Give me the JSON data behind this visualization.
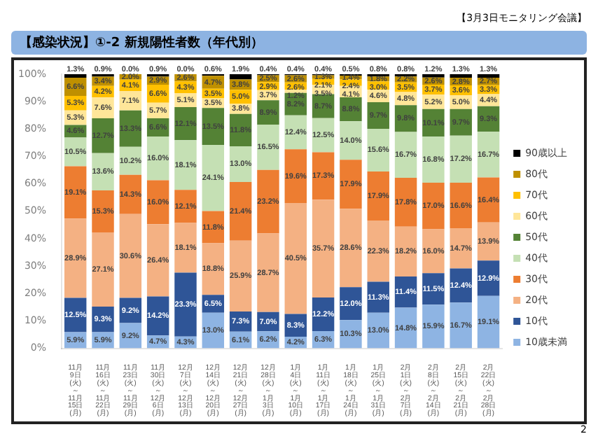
{
  "chart_data": {
    "type": "bar",
    "title": "【感染状況】①-2 新規陽性者数（年代別）",
    "annotations": [
      "【3月3日モニタリング会議】",
      "2"
    ],
    "categories": [
      "11月9日(火)～11月15日(月)",
      "11月16日(火)～11月22日(月)",
      "11月23日(火)～11月29日(月)",
      "11月30日(火)～12月6日(月)",
      "12月7日(火)～12月13日(月)",
      "12月14日(火)～12月20日(月)",
      "12月21日(火)～12月27日(月)",
      "12月28日(火)～1月3日(月)",
      "1月4日(火)～1月10日(月)",
      "1月11日(火)～1月17日(月)",
      "1月18日(火)～1月24日(月)",
      "1月25日(火)～1月31日(月)",
      "2月1日(火)～2月7日(月)",
      "2月8日(火)～2月14日(月)",
      "2月15日(火)～2月21日(月)",
      "2月22日(火)～2月28日(月)"
    ],
    "stacked": true,
    "legend": "right",
    "grid": false,
    "ylim": [
      0,
      100
    ],
    "yticks": [
      {
        "value": 0,
        "label": "0%"
      },
      {
        "value": 10,
        "label": "10%"
      },
      {
        "value": 20,
        "label": "20%"
      },
      {
        "value": 30,
        "label": "30%"
      },
      {
        "value": 40,
        "label": "40%"
      },
      {
        "value": 50,
        "label": "50%"
      },
      {
        "value": 60,
        "label": "60%"
      },
      {
        "value": 70,
        "label": "70%"
      },
      {
        "value": 80,
        "label": "80%"
      },
      {
        "value": 90,
        "label": "90%"
      },
      {
        "value": 100,
        "label": "100%"
      }
    ],
    "series": [
      {
        "name": "10歳未満",
        "color": "#8eb4e3",
        "values": [
          5.9,
          5.9,
          9.2,
          4.7,
          4.3,
          13.0,
          6.1,
          6.2,
          4.2,
          6.3,
          10.3,
          13.0,
          14.8,
          15.9,
          16.7,
          19.1
        ],
        "value_labels": [
          "5.9%",
          "5.9%",
          "9.2%",
          "4.7%",
          "4.3%",
          "13.0%",
          "6.1%",
          "6.2%",
          "4.2%",
          "6.3%",
          "10.3%",
          "13.0%",
          "14.8%",
          "15.9%",
          "16.7%",
          "19.1%"
        ]
      },
      {
        "name": "10代",
        "color": "#2f5597",
        "values": [
          12.5,
          9.3,
          9.2,
          14.2,
          23.3,
          6.5,
          7.3,
          7.0,
          8.3,
          12.2,
          12.0,
          11.3,
          11.4,
          11.5,
          12.4,
          12.9
        ],
        "value_labels": [
          "12.5%",
          "9.3%",
          "9.2%",
          "14.2%",
          "23.3%",
          "6.5%",
          "7.3%",
          "7.0%",
          "8.3%",
          "12.2%",
          "12.0%",
          "11.3%",
          "11.4%",
          "11.5%",
          "12.4%",
          "12.9%"
        ]
      },
      {
        "name": "20代",
        "color": "#f4b183",
        "values": [
          28.9,
          27.1,
          30.6,
          26.4,
          18.1,
          18.8,
          25.9,
          28.7,
          40.5,
          35.7,
          28.6,
          22.3,
          18.2,
          16.0,
          14.7,
          13.9
        ],
        "value_labels": [
          "28.9%",
          "27.1%",
          "30.6%",
          "26.4%",
          "18.1%",
          "18.8%",
          "25.9%",
          "28.7%",
          "40.5%",
          "35.7%",
          "28.6%",
          "22.3%",
          "18.2%",
          "16.0%",
          "14.7%",
          "13.9%"
        ]
      },
      {
        "name": "30代",
        "color": "#ed7d31",
        "values": [
          19.1,
          15.3,
          14.3,
          16.0,
          12.1,
          11.8,
          21.4,
          23.2,
          19.6,
          17.3,
          17.9,
          17.9,
          17.8,
          17.0,
          16.6,
          16.4
        ],
        "value_labels": [
          "19.1%",
          "15.3%",
          "14.3%",
          "16.0%",
          "12.1%",
          "11.8%",
          "21.4%",
          "23.2%",
          "19.6%",
          "17.3%",
          "17.9%",
          "17.9%",
          "17.8%",
          "17.0%",
          "16.6%",
          "16.4%"
        ]
      },
      {
        "name": "40代",
        "color": "#c5e0b4",
        "values": [
          10.5,
          13.6,
          10.2,
          16.0,
          18.1,
          24.1,
          13.0,
          16.5,
          12.4,
          12.5,
          14.0,
          15.6,
          16.7,
          16.8,
          17.2,
          16.7
        ],
        "value_labels": [
          "10.5%",
          "13.6%",
          "10.2%",
          "16.0%",
          "18.1%",
          "24.1%",
          "13.0%",
          "16.5%",
          "12.4%",
          "12.5%",
          "14.0%",
          "15.6%",
          "16.7%",
          "16.8%",
          "17.2%",
          "16.7%"
        ]
      },
      {
        "name": "50代",
        "color": "#548235",
        "values": [
          4.6,
          12.7,
          13.3,
          6.6,
          12.1,
          13.5,
          11.8,
          8.9,
          8.2,
          8.7,
          8.8,
          9.7,
          9.8,
          10.1,
          9.7,
          9.3
        ],
        "value_labels": [
          "4.6%",
          "12.7%",
          "13.3%",
          "6.6%",
          "12.1%",
          "13.5%",
          "11.8%",
          "8.9%",
          "8.2%",
          "8.7%",
          "8.8%",
          "9.7%",
          "9.8%",
          "10.1%",
          "9.7%",
          "9.3%"
        ]
      },
      {
        "name": "60代",
        "color": "#ffe699",
        "values": [
          5.3,
          7.6,
          7.1,
          5.7,
          5.1,
          3.5,
          3.8,
          3.7,
          1.2,
          3.5,
          4.1,
          4.6,
          4.8,
          5.2,
          5.0,
          4.4
        ],
        "value_labels": [
          "5.3%",
          "7.6%",
          "7.1%",
          "5.7%",
          "5.1%",
          "3.5%",
          "3.8%",
          "3.7%",
          "1.2%",
          "3.5%",
          "4.1%",
          "4.6%",
          "4.8%",
          "5.2%",
          "5.0%",
          "4.4%"
        ]
      },
      {
        "name": "70代",
        "color": "#ffc000",
        "values": [
          5.3,
          4.2,
          4.1,
          6.6,
          4.3,
          3.5,
          5.0,
          2.9,
          2.6,
          2.1,
          2.4,
          3.0,
          3.5,
          3.7,
          3.6,
          3.3
        ],
        "value_labels": [
          "5.3%",
          "4.2%",
          "4.1%",
          "6.6%",
          "4.3%",
          "3.5%",
          "5.0%",
          "2.9%",
          "2.6%",
          "2.1%",
          "2.4%",
          "3.0%",
          "3.5%",
          "3.7%",
          "3.6%",
          "3.3%"
        ]
      },
      {
        "name": "80代",
        "color": "#bf9000",
        "values": [
          6.6,
          3.4,
          2.0,
          2.9,
          2.6,
          4.7,
          3.8,
          2.5,
          2.6,
          1.3,
          1.4,
          1.8,
          2.2,
          2.6,
          2.8,
          2.7
        ],
        "value_labels": [
          "6.6%",
          "3.4%",
          "2.0%",
          "2.9%",
          "2.6%",
          "4.7%",
          "3.8%",
          "2.5%",
          "2.6%",
          "1.3%",
          "1.4%",
          "1.8%",
          "2.2%",
          "2.6%",
          "2.8%",
          "2.7%"
        ]
      },
      {
        "name": "90歳以上",
        "color": "#000000",
        "values": [
          1.3,
          0.9,
          0.0,
          0.9,
          0.0,
          0.6,
          1.9,
          0.4,
          0.4,
          0.4,
          0.5,
          0.8,
          0.8,
          1.2,
          1.3,
          1.3
        ],
        "value_labels": [
          "1.3%",
          "0.9%",
          "0.0%",
          "0.9%",
          "0.0%",
          "0.6%",
          "1.9%",
          "0.4%",
          "0.4%",
          "0.4%",
          "0.5%",
          "0.8%",
          "0.8%",
          "1.2%",
          "1.3%",
          "1.3%"
        ]
      }
    ]
  }
}
